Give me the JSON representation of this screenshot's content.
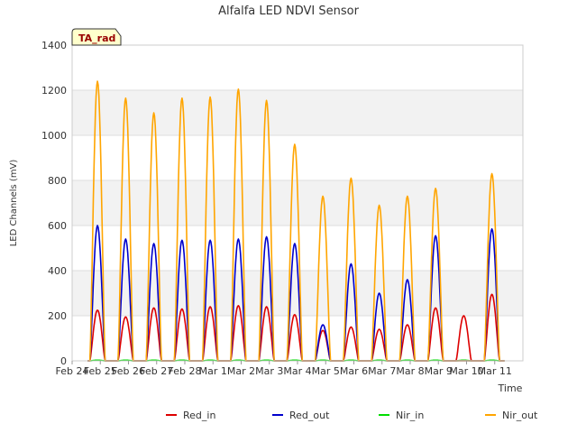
{
  "chart_data": {
    "type": "line",
    "title": "Alfalfa LED NDVI Sensor",
    "xlabel": "Time",
    "ylabel": "LED Channels (mV)",
    "site_label": "TA_rad",
    "ylim": [
      0,
      1400
    ],
    "yticks": [
      0,
      200,
      400,
      600,
      800,
      1000,
      1200,
      1400
    ],
    "xlim": [
      0,
      16
    ],
    "xtick_labels": [
      "Feb 24",
      "Feb 25",
      "Feb 26",
      "Feb 27",
      "Feb 28",
      "Mar 1",
      "Mar 2",
      "Mar 3",
      "Mar 4",
      "Mar 5",
      "Mar 6",
      "Mar 7",
      "Mar 8",
      "Mar 9",
      "Mar 10",
      "Mar 11"
    ],
    "day_centers": [
      0.9,
      1.9,
      2.9,
      3.9,
      4.9,
      5.9,
      6.9,
      7.9,
      8.9,
      9.9,
      10.9,
      11.9,
      12.9,
      13.9,
      14.9
    ],
    "colors": {
      "Red_in": "#dd0000",
      "Red_out": "#0000cc",
      "Nir_in": "#00dd00",
      "Nir_out": "#ffa500"
    },
    "series": [
      {
        "name": "Red_in",
        "daily_peaks": [
          225,
          195,
          235,
          230,
          240,
          245,
          240,
          205,
          135,
          150,
          140,
          160,
          235,
          200,
          295
        ]
      },
      {
        "name": "Red_out",
        "daily_peaks": [
          600,
          540,
          520,
          535,
          535,
          540,
          550,
          520,
          160,
          430,
          300,
          360,
          555,
          0,
          585
        ]
      },
      {
        "name": "Nir_in",
        "daily_peaks": [
          3,
          3,
          3,
          3,
          3,
          3,
          3,
          3,
          3,
          3,
          3,
          3,
          3,
          3,
          3
        ]
      },
      {
        "name": "Nir_out",
        "daily_peaks": [
          1240,
          1165,
          1100,
          1165,
          1170,
          1205,
          1155,
          960,
          730,
          810,
          690,
          730,
          765,
          0,
          830
        ]
      }
    ],
    "legend": [
      "Red_in",
      "Red_out",
      "Nir_in",
      "Nir_out"
    ],
    "legend_position": "bottom",
    "grid": true
  }
}
